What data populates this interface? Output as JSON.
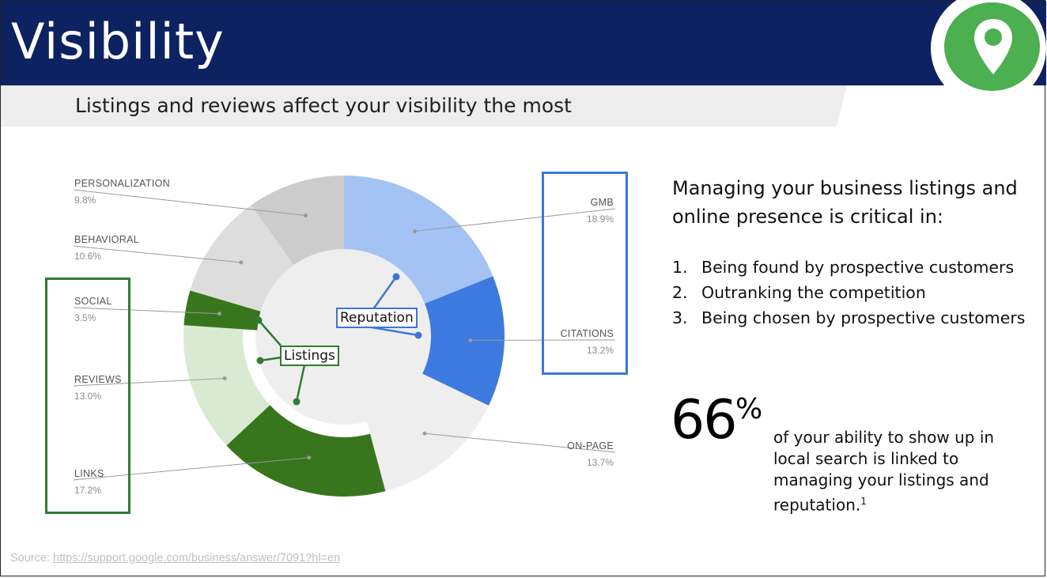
{
  "header": {
    "title": "Visibility",
    "logo_icon": "map-pin-icon"
  },
  "subtitle": "Listings and reviews affect your visibility the most",
  "chart_data": {
    "type": "pie",
    "donut": true,
    "categories": [
      "GMB",
      "CITATIONS",
      "ON-PAGE",
      "LINKS",
      "REVIEWS",
      "SOCIAL",
      "BEHAVIORAL",
      "PERSONALIZATION"
    ],
    "values": [
      18.9,
      13.2,
      13.7,
      17.2,
      13.0,
      3.5,
      10.6,
      9.8
    ],
    "value_labels": [
      "18.9%",
      "13.2%",
      "13.7%",
      "17.2%",
      "13.0%",
      "3.5%",
      "10.6%",
      "9.8%"
    ],
    "colors": [
      "#a4c2f4",
      "#3d7ae0",
      "#eeeeee",
      "#38761d",
      "#d9ead3",
      "#38761d",
      "#dddddd",
      "#cccccc"
    ],
    "groups": [
      {
        "label": "Reputation",
        "members": [
          "GMB",
          "CITATIONS"
        ],
        "color": "#3d76d9"
      },
      {
        "label": "Listings",
        "members": [
          "SOCIAL",
          "REVIEWS",
          "LINKS"
        ],
        "color": "#2e7d32"
      }
    ]
  },
  "right": {
    "heading": "Managing your business listings and online presence is critical in:",
    "items": [
      {
        "num": "1.",
        "text": "Being found by prospective customers"
      },
      {
        "num": "2.",
        "text": "Outranking the competition"
      },
      {
        "num": "3.",
        "text": "Being chosen by prospective customers"
      }
    ],
    "stat_value": "66",
    "stat_unit": "%",
    "stat_text": "of your ability to show up in local search is linked to managing your listings and reputation.",
    "stat_footnote": "1"
  },
  "source": {
    "label": "Source:",
    "url": "https://support.google.com/business/answer/7091?hl=en"
  }
}
